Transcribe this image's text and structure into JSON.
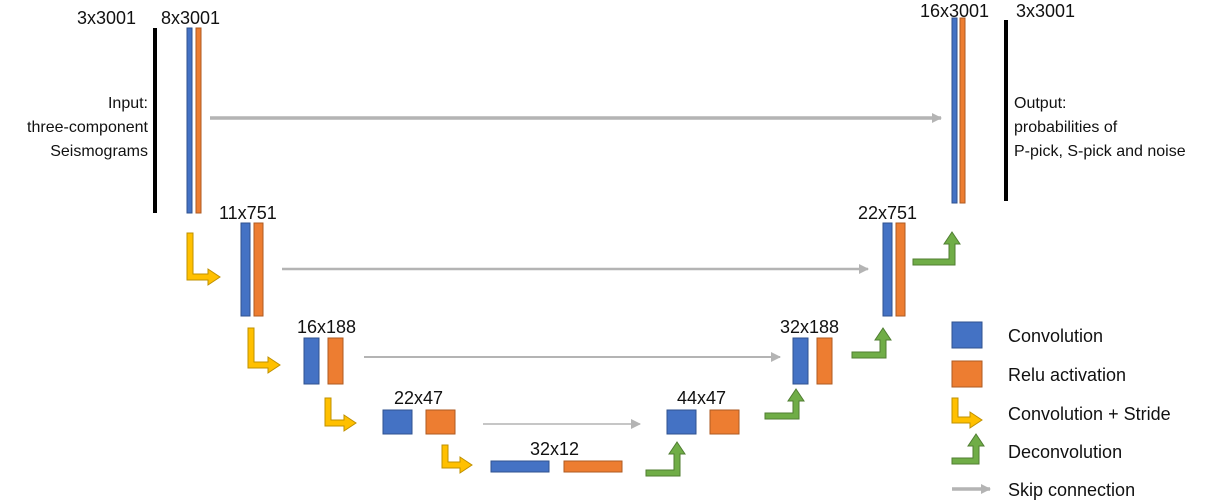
{
  "colors": {
    "convolution": "#4472C4",
    "relu": "#ED7D31",
    "stride_arrow": "#FFC000",
    "deconv_arrow": "#70AD47",
    "skip_arrow": "#B4B4B4",
    "input_bar": "#000000"
  },
  "shapes": {
    "input": "3x3001",
    "enc1": "8x3001",
    "enc2": "11x751",
    "enc3": "16x188",
    "enc4": "22x47",
    "bottleneck": "32x12",
    "dec4": "44x47",
    "dec3": "32x188",
    "dec2": "22x751",
    "dec1": "16x3001",
    "output": "3x3001"
  },
  "input_text": [
    "Input:",
    "three-component",
    "Seismograms"
  ],
  "output_text": [
    "Output:",
    "probabilities of",
    "P-pick, S-pick and noise"
  ],
  "legend": {
    "convolution": "Convolution",
    "relu": "Relu activation",
    "conv_stride": "Convolution + Stride",
    "deconvolution": "Deconvolution",
    "skip": "Skip connection"
  }
}
